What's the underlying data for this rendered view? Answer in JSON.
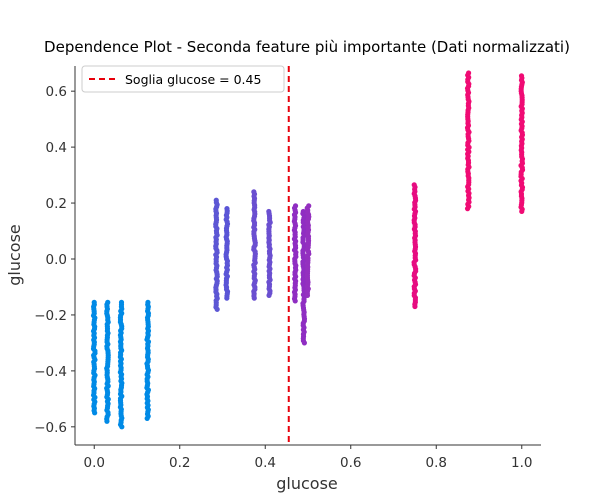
{
  "chart_data": {
    "type": "scatter",
    "title": "Dependence Plot - Seconda feature più importante (Dati normalizzati)",
    "xlabel": "glucose",
    "ylabel": "glucose",
    "xlim": [
      -0.045,
      1.045
    ],
    "ylim": [
      -0.665,
      0.69
    ],
    "x_ticks": [
      0.0,
      0.2,
      0.4,
      0.6,
      0.8,
      1.0
    ],
    "x_tick_labels": [
      "0.0",
      "0.2",
      "0.4",
      "0.6",
      "0.8",
      "1.0"
    ],
    "y_ticks": [
      -0.6,
      -0.4,
      -0.2,
      0.0,
      0.2,
      0.4,
      0.6
    ],
    "y_tick_labels": [
      "−0.6",
      "−0.4",
      "−0.2",
      "0.0",
      "0.2",
      "0.4",
      "0.6"
    ],
    "grid": false,
    "legend_position": "top-left",
    "threshold": {
      "x": 0.455,
      "label": "Soglia glucose = 0.45",
      "color": "#e8000b"
    },
    "clusters": [
      {
        "x": 0.0,
        "y_min": -0.55,
        "y_max": -0.155,
        "color": "#008ae6"
      },
      {
        "x": 0.031,
        "y_min": -0.58,
        "y_max": -0.155,
        "color": "#008ae6"
      },
      {
        "x": 0.063,
        "y_min": -0.6,
        "y_max": -0.155,
        "color": "#008ae6"
      },
      {
        "x": 0.125,
        "y_min": -0.57,
        "y_max": -0.155,
        "color": "#008ae6"
      },
      {
        "x": 0.286,
        "y_min": -0.18,
        "y_max": 0.21,
        "color": "#5d57d4"
      },
      {
        "x": 0.31,
        "y_min": -0.14,
        "y_max": 0.18,
        "color": "#5a55d6"
      },
      {
        "x": 0.375,
        "y_min": -0.14,
        "y_max": 0.24,
        "color": "#6a4fd0"
      },
      {
        "x": 0.41,
        "y_min": -0.13,
        "y_max": 0.17,
        "color": "#6a4fd0"
      },
      {
        "x": 0.47,
        "y_min": -0.15,
        "y_max": 0.19,
        "color": "#8f2ec2"
      },
      {
        "x": 0.49,
        "y_min": -0.3,
        "y_max": 0.17,
        "color": "#8f2ec2"
      },
      {
        "x": 0.5,
        "y_min": -0.13,
        "y_max": 0.19,
        "color": "#9430bf"
      },
      {
        "x": 0.75,
        "y_min": -0.17,
        "y_max": 0.265,
        "color": "#e60d81"
      },
      {
        "x": 0.875,
        "y_min": 0.18,
        "y_max": 0.665,
        "color": "#f00b74"
      },
      {
        "x": 1.0,
        "y_min": 0.17,
        "y_max": 0.655,
        "color": "#f00b74"
      }
    ]
  }
}
